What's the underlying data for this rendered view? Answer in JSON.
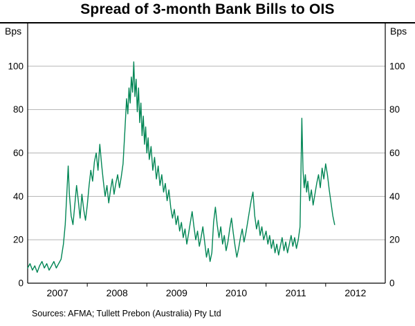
{
  "chart_data": {
    "type": "line",
    "title": "Spread of 3-month Bank Bills to OIS",
    "unit_left": "Bps",
    "unit_right": "Bps",
    "ylabel": "Bps",
    "xlabel": "",
    "x_domain": [
      2007.0,
      2013.0
    ],
    "ylim": [
      0,
      120
    ],
    "y_ticks": [
      0,
      20,
      40,
      60,
      80,
      100
    ],
    "x_boundary_ticks": [
      2008,
      2009,
      2010,
      2011,
      2012
    ],
    "x_label_positions": [
      2007.5,
      2008.5,
      2009.5,
      2010.5,
      2011.5,
      2012.5
    ],
    "x_tick_labels": [
      "2007",
      "2008",
      "2009",
      "2010",
      "2011",
      "2012"
    ],
    "grid": "horizontal",
    "legend": "none",
    "series": [
      {
        "name": "Spread of 3-month bank bills to OIS",
        "color": "#008554",
        "points": [
          [
            2007.0,
            7
          ],
          [
            2007.04,
            9
          ],
          [
            2007.08,
            6
          ],
          [
            2007.12,
            8
          ],
          [
            2007.16,
            5
          ],
          [
            2007.2,
            8
          ],
          [
            2007.24,
            10
          ],
          [
            2007.28,
            7
          ],
          [
            2007.32,
            9
          ],
          [
            2007.36,
            6
          ],
          [
            2007.4,
            8
          ],
          [
            2007.44,
            10
          ],
          [
            2007.48,
            7
          ],
          [
            2007.52,
            9
          ],
          [
            2007.56,
            11
          ],
          [
            2007.6,
            18
          ],
          [
            2007.63,
            27
          ],
          [
            2007.66,
            43
          ],
          [
            2007.68,
            54
          ],
          [
            2007.7,
            41
          ],
          [
            2007.73,
            31
          ],
          [
            2007.76,
            27
          ],
          [
            2007.79,
            36
          ],
          [
            2007.82,
            45
          ],
          [
            2007.85,
            38
          ],
          [
            2007.88,
            30
          ],
          [
            2007.91,
            41
          ],
          [
            2007.94,
            34
          ],
          [
            2007.97,
            29
          ],
          [
            2008.0,
            36
          ],
          [
            2008.03,
            45
          ],
          [
            2008.06,
            52
          ],
          [
            2008.09,
            47
          ],
          [
            2008.12,
            56
          ],
          [
            2008.15,
            60
          ],
          [
            2008.18,
            52
          ],
          [
            2008.21,
            64
          ],
          [
            2008.24,
            55
          ],
          [
            2008.27,
            47
          ],
          [
            2008.3,
            40
          ],
          [
            2008.33,
            45
          ],
          [
            2008.36,
            37
          ],
          [
            2008.39,
            43
          ],
          [
            2008.42,
            48
          ],
          [
            2008.45,
            41
          ],
          [
            2008.48,
            46
          ],
          [
            2008.51,
            50
          ],
          [
            2008.54,
            44
          ],
          [
            2008.57,
            49
          ],
          [
            2008.6,
            55
          ],
          [
            2008.63,
            70
          ],
          [
            2008.66,
            85
          ],
          [
            2008.68,
            78
          ],
          [
            2008.7,
            90
          ],
          [
            2008.72,
            83
          ],
          [
            2008.74,
            95
          ],
          [
            2008.76,
            88
          ],
          [
            2008.78,
            102
          ],
          [
            2008.8,
            86
          ],
          [
            2008.82,
            94
          ],
          [
            2008.84,
            79
          ],
          [
            2008.86,
            90
          ],
          [
            2008.88,
            74
          ],
          [
            2008.9,
            83
          ],
          [
            2008.92,
            68
          ],
          [
            2008.94,
            77
          ],
          [
            2008.96,
            64
          ],
          [
            2008.98,
            72
          ],
          [
            2009.0,
            60
          ],
          [
            2009.02,
            67
          ],
          [
            2009.04,
            57
          ],
          [
            2009.07,
            63
          ],
          [
            2009.1,
            52
          ],
          [
            2009.13,
            58
          ],
          [
            2009.16,
            48
          ],
          [
            2009.19,
            54
          ],
          [
            2009.22,
            45
          ],
          [
            2009.25,
            50
          ],
          [
            2009.28,
            42
          ],
          [
            2009.31,
            46
          ],
          [
            2009.34,
            38
          ],
          [
            2009.37,
            43
          ],
          [
            2009.4,
            35
          ],
          [
            2009.43,
            30
          ],
          [
            2009.46,
            34
          ],
          [
            2009.49,
            27
          ],
          [
            2009.52,
            31
          ],
          [
            2009.55,
            24
          ],
          [
            2009.58,
            28
          ],
          [
            2009.61,
            21
          ],
          [
            2009.64,
            25
          ],
          [
            2009.67,
            18
          ],
          [
            2009.7,
            23
          ],
          [
            2009.73,
            28
          ],
          [
            2009.76,
            33
          ],
          [
            2009.79,
            26
          ],
          [
            2009.82,
            20
          ],
          [
            2009.85,
            24
          ],
          [
            2009.88,
            17
          ],
          [
            2009.91,
            21
          ],
          [
            2009.94,
            26
          ],
          [
            2009.97,
            19
          ],
          [
            2010.0,
            12
          ],
          [
            2010.03,
            16
          ],
          [
            2010.06,
            10
          ],
          [
            2010.09,
            14
          ],
          [
            2010.12,
            28
          ],
          [
            2010.15,
            35
          ],
          [
            2010.18,
            27
          ],
          [
            2010.21,
            21
          ],
          [
            2010.24,
            26
          ],
          [
            2010.27,
            18
          ],
          [
            2010.3,
            22
          ],
          [
            2010.33,
            15
          ],
          [
            2010.36,
            19
          ],
          [
            2010.39,
            25
          ],
          [
            2010.42,
            30
          ],
          [
            2010.45,
            23
          ],
          [
            2010.48,
            17
          ],
          [
            2010.51,
            12
          ],
          [
            2010.54,
            16
          ],
          [
            2010.57,
            21
          ],
          [
            2010.6,
            25
          ],
          [
            2010.63,
            19
          ],
          [
            2010.66,
            23
          ],
          [
            2010.69,
            28
          ],
          [
            2010.72,
            33
          ],
          [
            2010.75,
            38
          ],
          [
            2010.78,
            42
          ],
          [
            2010.81,
            31
          ],
          [
            2010.84,
            25
          ],
          [
            2010.87,
            29
          ],
          [
            2010.9,
            22
          ],
          [
            2010.93,
            26
          ],
          [
            2010.96,
            20
          ],
          [
            2011.0,
            24
          ],
          [
            2011.03,
            18
          ],
          [
            2011.06,
            22
          ],
          [
            2011.09,
            16
          ],
          [
            2011.12,
            20
          ],
          [
            2011.15,
            14
          ],
          [
            2011.18,
            18
          ],
          [
            2011.21,
            13
          ],
          [
            2011.24,
            17
          ],
          [
            2011.27,
            21
          ],
          [
            2011.3,
            15
          ],
          [
            2011.33,
            19
          ],
          [
            2011.36,
            14
          ],
          [
            2011.39,
            18
          ],
          [
            2011.42,
            22
          ],
          [
            2011.45,
            17
          ],
          [
            2011.48,
            21
          ],
          [
            2011.51,
            16
          ],
          [
            2011.54,
            20
          ],
          [
            2011.57,
            26
          ],
          [
            2011.6,
            76
          ],
          [
            2011.62,
            52
          ],
          [
            2011.64,
            44
          ],
          [
            2011.66,
            50
          ],
          [
            2011.68,
            42
          ],
          [
            2011.7,
            47
          ],
          [
            2011.73,
            38
          ],
          [
            2011.76,
            43
          ],
          [
            2011.79,
            36
          ],
          [
            2011.82,
            41
          ],
          [
            2011.85,
            46
          ],
          [
            2011.88,
            50
          ],
          [
            2011.91,
            44
          ],
          [
            2011.94,
            53
          ],
          [
            2011.97,
            48
          ],
          [
            2012.0,
            55
          ],
          [
            2012.03,
            50
          ],
          [
            2012.06,
            43
          ],
          [
            2012.09,
            37
          ],
          [
            2012.12,
            31
          ],
          [
            2012.15,
            27
          ]
        ]
      }
    ]
  },
  "colors": {
    "line": "#008554",
    "grid": "#b3b3b3",
    "axis": "#000000",
    "background": "#ffffff",
    "text": "#000000"
  },
  "footer": {
    "source_note": "Sources: AFMA; Tullett Prebon (Australia) Pty Ltd"
  }
}
